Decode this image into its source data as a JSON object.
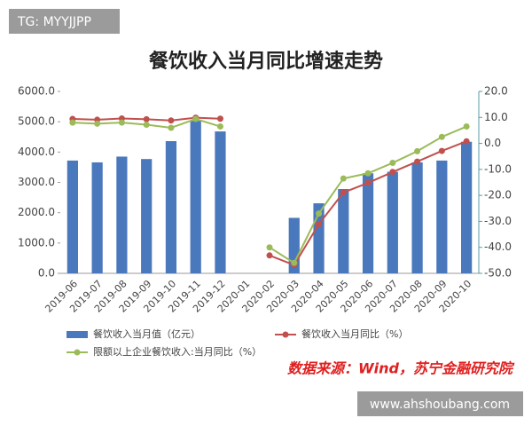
{
  "overlay": {
    "tag": "TG: MYYJJPP",
    "site": "www.ahshoubang.com"
  },
  "chart_data": {
    "type": "bar-line",
    "title": "餐饮收入当月同比增速走势",
    "source": "数据来源：Wind，苏宁金融研究院",
    "categories": [
      "2019-06",
      "2019-07",
      "2019-08",
      "2019-09",
      "2019-10",
      "2019-11",
      "2019-12",
      "2020-01",
      "2020-02",
      "2020-03",
      "2020-04",
      "2020-05",
      "2020-06",
      "2020-07",
      "2020-08",
      "2020-09",
      "2020-10"
    ],
    "series": [
      {
        "name": "餐饮收入当月值（亿元）",
        "type": "bar",
        "color": "#4a78bd",
        "values": [
          3720,
          3660,
          3850,
          3770,
          4360,
          5030,
          4680,
          null,
          null,
          1830,
          2310,
          2780,
          3300,
          3350,
          3660,
          3720,
          4340
        ]
      },
      {
        "name": "餐饮收入当月同比（%）",
        "type": "line",
        "axis": "y2",
        "color": "#c0504d",
        "values": [
          9.4,
          9.1,
          9.6,
          9.3,
          8.8,
          9.9,
          9.5,
          null,
          -43.1,
          -46.8,
          -31.1,
          -18.9,
          -15.2,
          -11.0,
          -7.0,
          -2.9,
          0.8
        ]
      },
      {
        "name": "限额以上企业餐饮收入:当月同比（%）",
        "type": "line",
        "axis": "y2",
        "color": "#9bbb59",
        "values": [
          8.0,
          7.6,
          8.0,
          7.2,
          6.0,
          9.4,
          6.5,
          null,
          -40.0,
          -46.0,
          -27.0,
          -13.5,
          -11.5,
          -7.5,
          -3.0,
          2.5,
          6.5
        ]
      }
    ],
    "ylim": [
      0,
      6000
    ],
    "yticks": [
      {
        "value": 0,
        "label": "0.0"
      },
      {
        "value": 1000,
        "label": "1000.0"
      },
      {
        "value": 2000,
        "label": "2000.0"
      },
      {
        "value": 3000,
        "label": "3000.0"
      },
      {
        "value": 4000,
        "label": "4000.0"
      },
      {
        "value": 5000,
        "label": "5000.0"
      },
      {
        "value": 6000,
        "label": "6000.0"
      }
    ],
    "y2lim": [
      -50,
      20
    ],
    "y2ticks": [
      {
        "value": 20,
        "label": "20.0"
      },
      {
        "value": 10,
        "label": "10.0"
      },
      {
        "value": 0,
        "label": "0.0"
      },
      {
        "value": -10,
        "label": "-10.0"
      },
      {
        "value": -20,
        "label": "-20.0"
      },
      {
        "value": -30,
        "label": "-30.0"
      },
      {
        "value": -40,
        "label": "-40.0"
      },
      {
        "value": -50,
        "label": "-50.0"
      }
    ]
  }
}
